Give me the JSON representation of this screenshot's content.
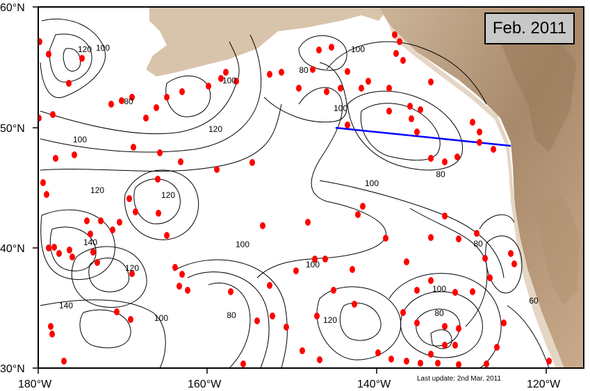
{
  "map": {
    "date_label": "Feb. 2011",
    "update_note": "Last update: 2nd Mar. 2011",
    "lat_labels": [
      "60°N",
      "50°N",
      "40°N",
      "30°N"
    ],
    "lon_labels": [
      "180°W",
      "160°W",
      "140°W",
      "120°W"
    ],
    "contour_labels": [
      "120",
      "100",
      "80",
      "100",
      "80",
      "100",
      "120",
      "120",
      "100",
      "140",
      "140",
      "120",
      "100",
      "80",
      "120",
      "100",
      "100",
      "100",
      "80",
      "100",
      "120",
      "80",
      "100",
      "80",
      "60"
    ],
    "colors": {
      "land_light": "#d9c2a8",
      "land_dark": "#a8896a",
      "contour": "#000000",
      "float_marker": "#ff0000",
      "section_line": "#0000ff",
      "date_box_fill": "#c8c8c8"
    }
  }
}
